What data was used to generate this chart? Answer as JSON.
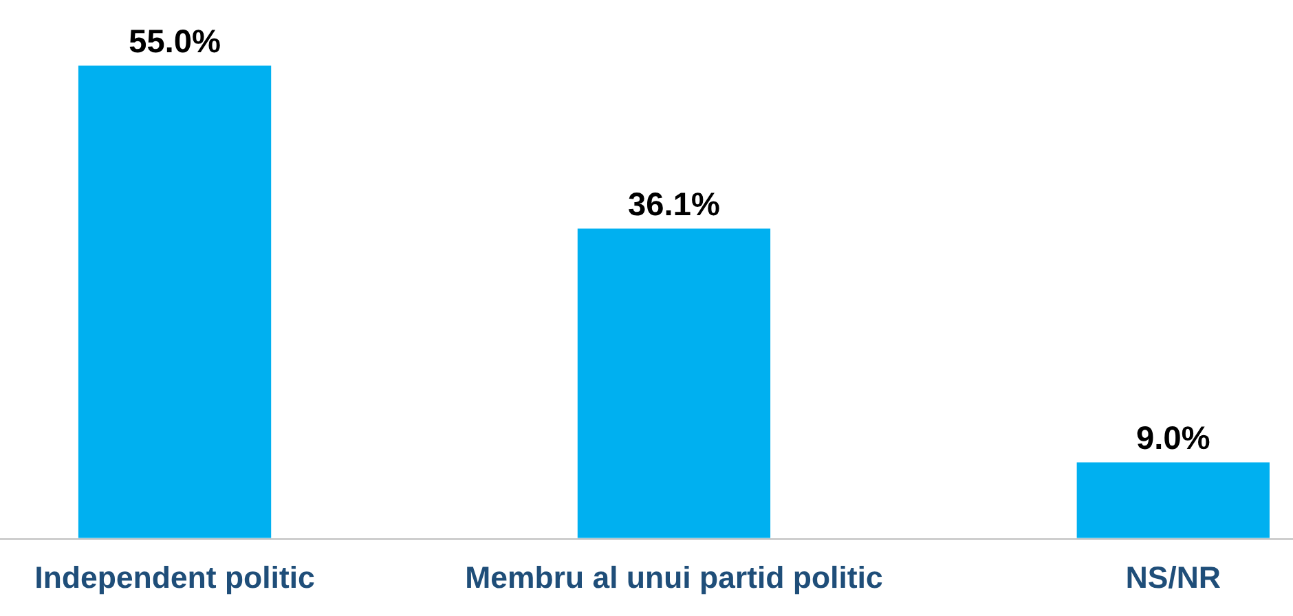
{
  "chart_data": {
    "type": "bar",
    "categories": [
      "Independent politic",
      "Membru al unui partid politic",
      "NS/NR"
    ],
    "values": [
      55.0,
      36.1,
      9.0
    ],
    "color": "#00b0f0",
    "value_labels": [
      "55.0%",
      "36.1%",
      "9.0%"
    ]
  }
}
